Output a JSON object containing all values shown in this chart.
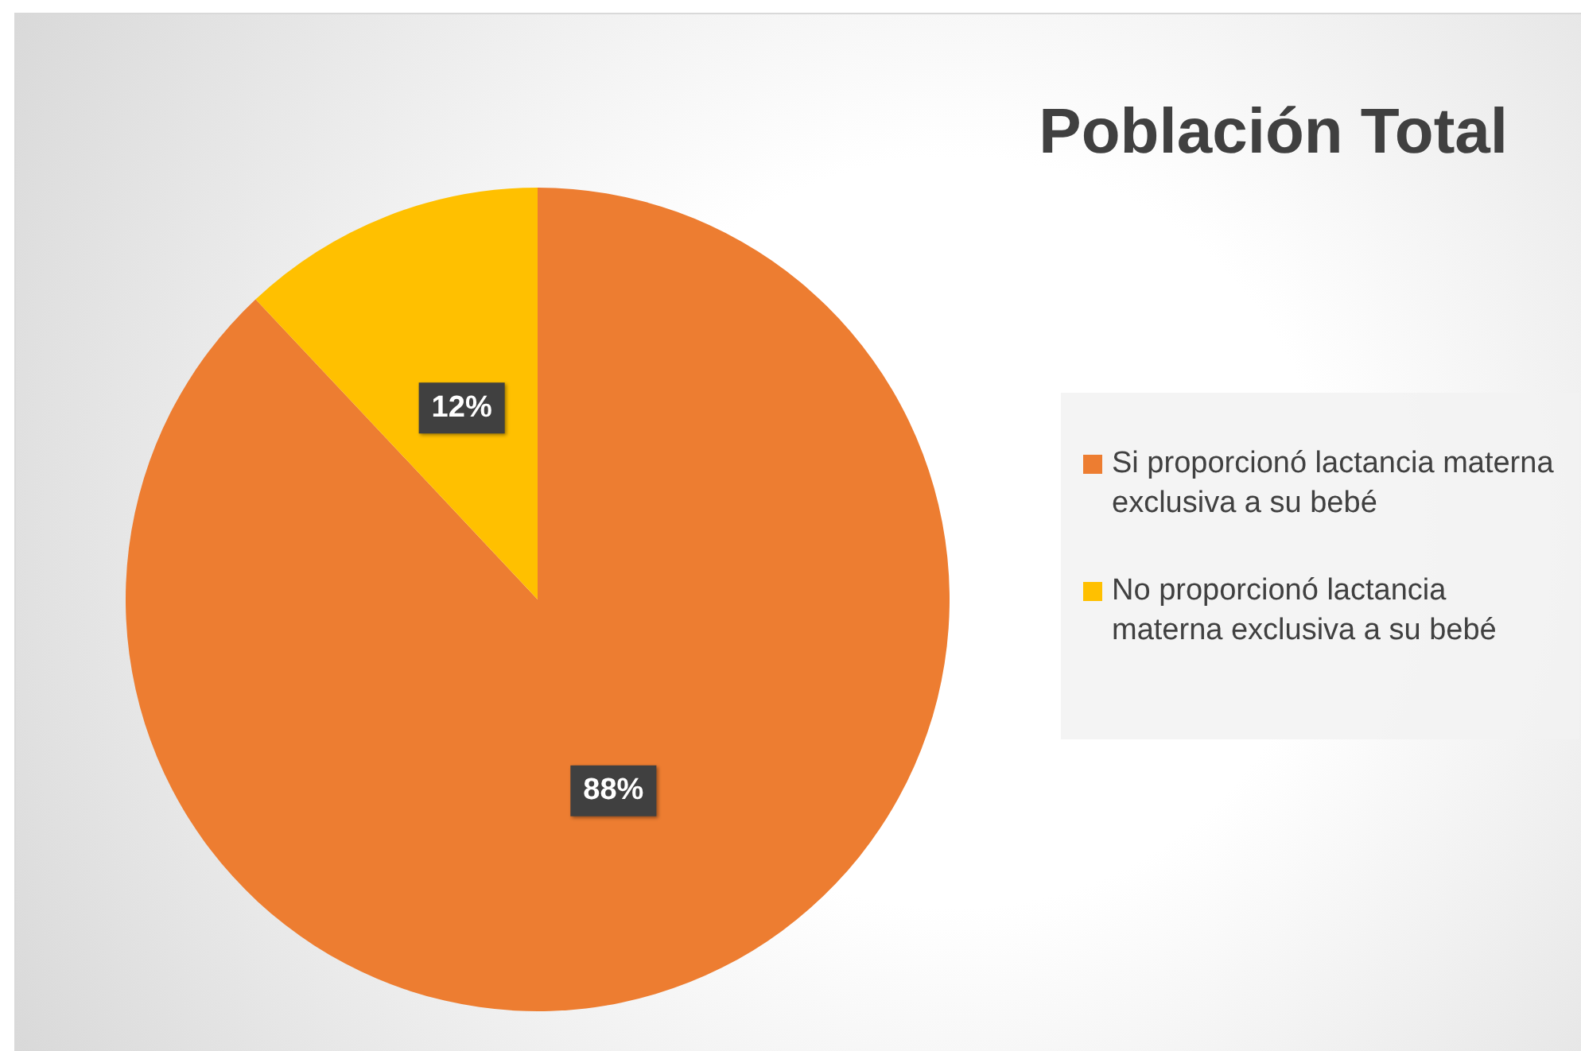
{
  "chart_data": {
    "type": "pie",
    "title": "Población Total",
    "categories": [
      "Si proporcionó lactancia materna exclusiva a su bebé",
      "No proporcionó lactancia materna exclusiva a su bebé"
    ],
    "values": [
      88,
      12
    ],
    "colors": [
      "#ed7d31",
      "#ffc000"
    ],
    "value_labels": [
      "88%",
      "12%"
    ],
    "legend": "right"
  }
}
